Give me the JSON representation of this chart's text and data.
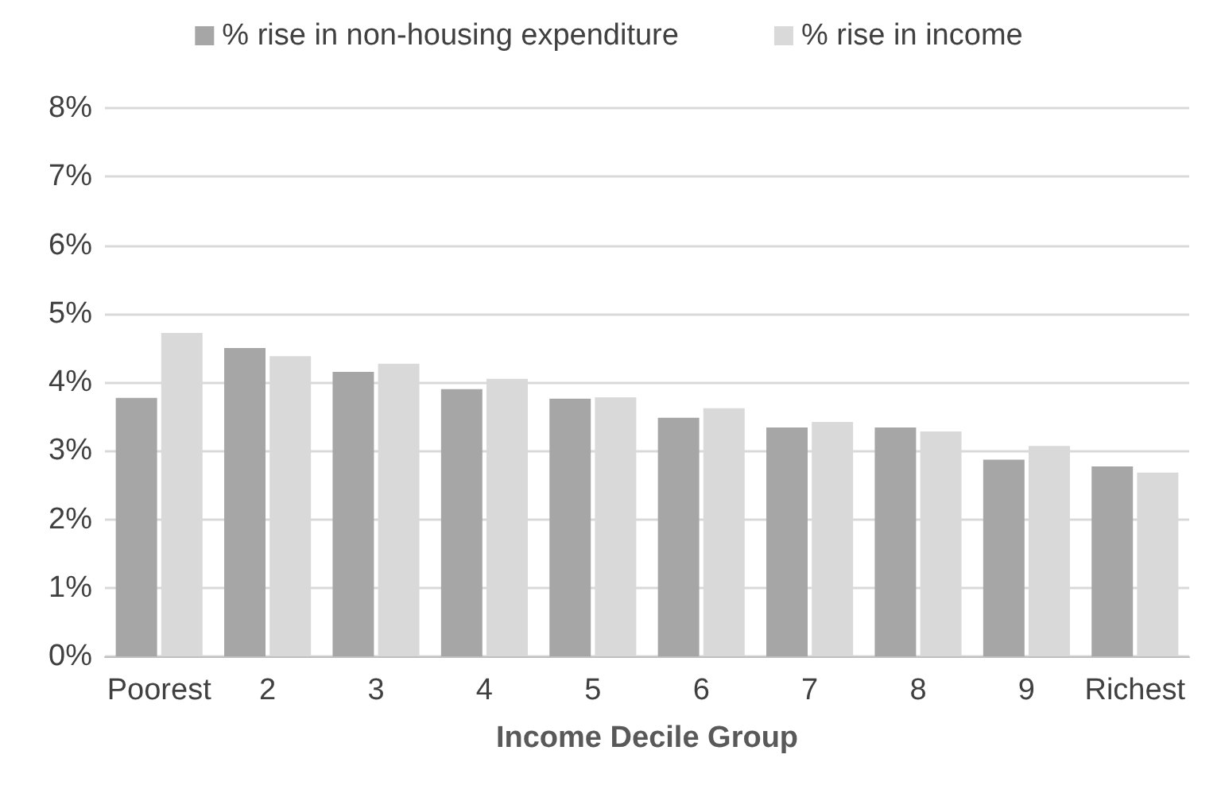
{
  "chart_data": {
    "type": "bar",
    "xlabel": "Income Decile Group",
    "categories": [
      "Poorest",
      "2",
      "3",
      "4",
      "5",
      "6",
      "7",
      "8",
      "9",
      "Richest"
    ],
    "series": [
      {
        "name": "% rise in non-housing expenditure",
        "color": "#a6a6a6",
        "values": [
          3.77,
          4.5,
          4.15,
          3.9,
          3.76,
          3.48,
          3.34,
          3.34,
          2.87,
          2.77
        ]
      },
      {
        "name": "% rise in income",
        "color": "#d9d9d9",
        "values": [
          4.72,
          4.38,
          4.27,
          4.05,
          3.78,
          3.62,
          3.42,
          3.28,
          3.07,
          2.68
        ]
      }
    ],
    "ylim": [
      0,
      8
    ],
    "yticks": [
      {
        "value": 0,
        "label": "0%"
      },
      {
        "value": 1,
        "label": "1%"
      },
      {
        "value": 2,
        "label": "2%"
      },
      {
        "value": 3,
        "label": "3%"
      },
      {
        "value": 4,
        "label": "4%"
      },
      {
        "value": 5,
        "label": "5%"
      },
      {
        "value": 6,
        "label": "6%"
      },
      {
        "value": 7,
        "label": "7%"
      },
      {
        "value": 8,
        "label": "8%"
      }
    ],
    "grid": "y",
    "legend": "top"
  }
}
